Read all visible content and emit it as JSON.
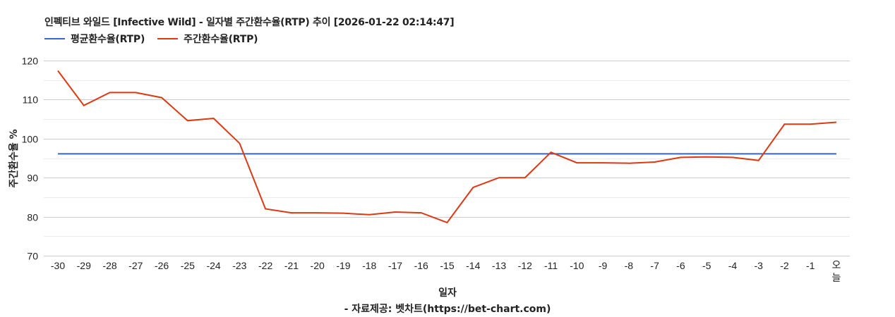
{
  "chart_data": {
    "type": "line",
    "title": "인펙티브 와일드 [Infective Wild] - 일자별 주간환수율(RTP) 추이 [2026-01-22 02:14:47]",
    "xlabel": "일자",
    "ylabel": "주간환수율 %",
    "source": "- 자료제공: 벳차트(https://bet-chart.com)",
    "categories": [
      "-30",
      "-29",
      "-28",
      "-27",
      "-26",
      "-25",
      "-24",
      "-23",
      "-22",
      "-21",
      "-20",
      "-19",
      "-18",
      "-17",
      "-16",
      "-15",
      "-14",
      "-13",
      "-12",
      "-11",
      "-10",
      "-9",
      "-8",
      "-7",
      "-6",
      "-5",
      "-4",
      "-3",
      "-2",
      "-1",
      "오늘"
    ],
    "series": [
      {
        "name": "평균환수율(RTP)",
        "color": "#3366cc",
        "values": [
          96.1,
          96.1,
          96.1,
          96.1,
          96.1,
          96.1,
          96.1,
          96.1,
          96.1,
          96.1,
          96.1,
          96.1,
          96.1,
          96.1,
          96.1,
          96.1,
          96.1,
          96.1,
          96.1,
          96.1,
          96.1,
          96.1,
          96.1,
          96.1,
          96.1,
          96.1,
          96.1,
          96.1,
          96.1,
          96.1,
          96.1
        ]
      },
      {
        "name": "주간환수율(RTP)",
        "color": "#dc3912",
        "values": [
          117.4,
          108.5,
          111.8,
          111.8,
          110.5,
          104.6,
          105.2,
          98.8,
          82.0,
          81.0,
          81.0,
          80.9,
          80.5,
          81.2,
          81.0,
          78.5,
          87.5,
          90.0,
          90.0,
          96.5,
          93.8,
          93.8,
          93.7,
          94.0,
          95.2,
          95.3,
          95.2,
          94.4,
          103.7,
          103.7,
          104.2
        ]
      }
    ],
    "ylim": [
      70,
      120
    ],
    "yticks": [
      70,
      80,
      90,
      100,
      110,
      120
    ],
    "minor_gridlines": [
      75,
      85,
      95,
      105,
      115
    ],
    "grid": true,
    "legend_position": "top-left"
  },
  "header": {
    "title": "인펙티브 와일드 [Infective Wild] - 일자별 주간환수율(RTP) 추이 [2026-01-22 02:14:47]"
  },
  "legend": {
    "items": [
      {
        "label": "평균환수율(RTP)",
        "color": "#3366cc"
      },
      {
        "label": "주간환수율(RTP)",
        "color": "#dc3912"
      }
    ]
  },
  "axes": {
    "x_title": "일자",
    "y_title": "주간환수율 %",
    "today_label_line1": "오",
    "today_label_line2": "늘"
  },
  "footer": {
    "source": "- 자료제공: 벳차트(https://bet-chart.com)"
  },
  "colors": {
    "major_grid": "#cccccc",
    "minor_grid": "#ebebeb",
    "text": "#222222"
  }
}
